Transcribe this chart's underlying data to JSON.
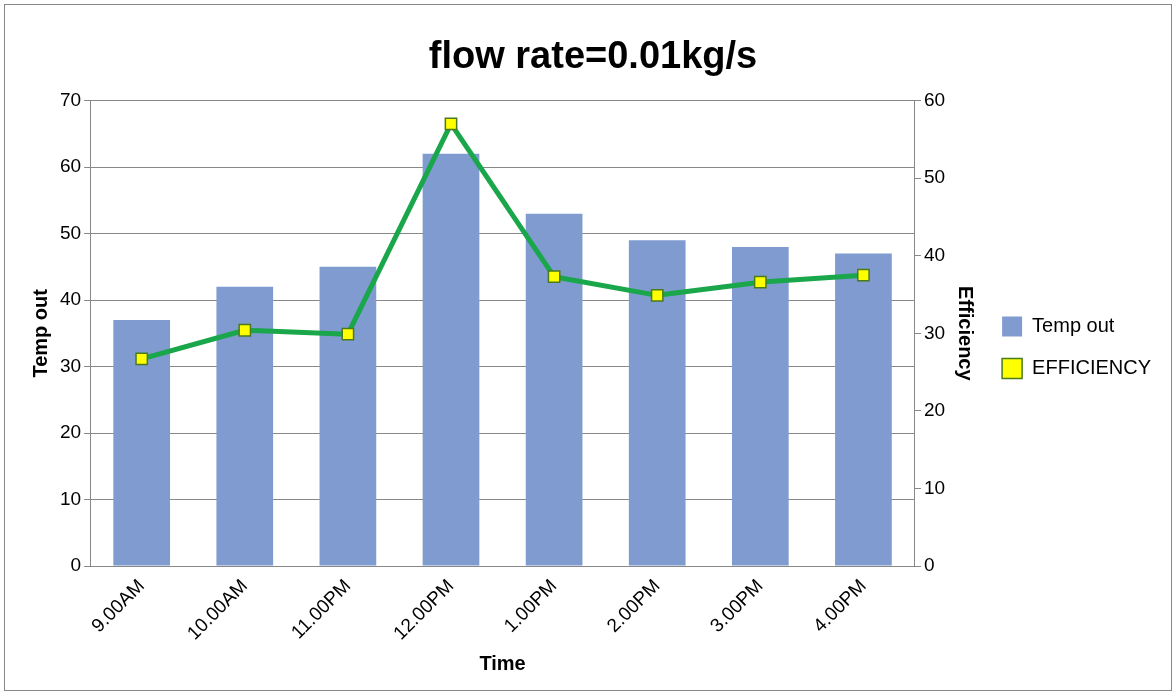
{
  "chart_data": {
    "type": "bar",
    "title": "flow rate=0.01kg/s",
    "xlabel": "Time",
    "ylabel": "Temp out",
    "y2label": "Efficiency",
    "categories": [
      "9.00AM",
      "10.00AM",
      "11.00PM",
      "12.00PM",
      "1.00PM",
      "2.00PM",
      "3.00PM",
      "4.00PM"
    ],
    "series": [
      {
        "name": "Temp out",
        "color": "#7f9bd0",
        "values": [
          37,
          42,
          45,
          62,
          53,
          49,
          48,
          47
        ]
      },
      {
        "name": "EFFICIENCY",
        "type": "line",
        "axis": "y2",
        "color": "#1aa64a",
        "marker": "square",
        "values": [
          26.7,
          30.4,
          29.9,
          57,
          37.3,
          34.9,
          36.6,
          37.5
        ]
      }
    ],
    "ylim": [
      0,
      70
    ],
    "yticks": [
      0,
      10,
      20,
      30,
      40,
      50,
      60,
      70
    ],
    "y2lim": [
      0,
      60
    ],
    "y2ticks": [
      0,
      10,
      20,
      30,
      40,
      50,
      60
    ],
    "grid": "y",
    "legend": "right"
  }
}
